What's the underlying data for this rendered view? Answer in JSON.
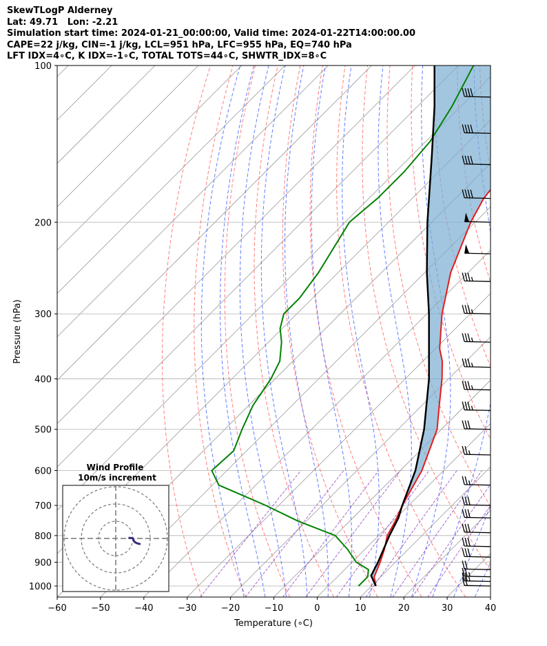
{
  "header": {
    "line1": "SkewTLogP Alderney",
    "line2": "Lat: 49.71   Lon: -2.21",
    "line3": "Simulation start time: 2024-01-21_00:00:00, Valid time: 2024-01-22T14:00:00.00",
    "line4": "CAPE=22 j/kg, CIN=-1 j/kg, LCL=951 hPa, LFC=955 hPa, EQ=740 hPa",
    "line5": "LFT IDX=4∘C, K IDX=-1∘C, TOTAL TOTS=44∘C, SHWTR_IDX=8∘C"
  },
  "colors": {
    "temperature": "#e31a1c",
    "dewpoint": "#008000",
    "parcel": "#000000",
    "cape_fill": "#7aaed2",
    "dry_adiabat": "#ff5050",
    "moist_adiabat": "#3050ff",
    "mixing_ratio": "#9040c0",
    "isotherm": "#999999",
    "grid": "#b0b0b0",
    "hodograph": "#3a2a7a"
  },
  "chart_data": {
    "type": "skewt",
    "xlabel": "Temperature (∘C)",
    "ylabel": "Pressure (hPa)",
    "xlim": [
      -60,
      40
    ],
    "ylim": [
      1050,
      100
    ],
    "x_ticks": [
      "−60",
      "−50",
      "−40",
      "−30",
      "−20",
      "−10",
      "0",
      "10",
      "20",
      "30",
      "40"
    ],
    "x_tick_values": [
      -60,
      -50,
      -40,
      -30,
      -20,
      -10,
      0,
      10,
      20,
      30,
      40
    ],
    "y_ticks": [
      "1000",
      "900",
      "800",
      "700",
      "600",
      "500",
      "400",
      "300",
      "200",
      "100"
    ],
    "y_tick_values": [
      1000,
      900,
      800,
      700,
      600,
      500,
      400,
      300,
      200,
      100
    ],
    "grid": true,
    "temperature": [
      [
        1000,
        11.0
      ],
      [
        960,
        8.5
      ],
      [
        900,
        6.5
      ],
      [
        850,
        4.5
      ],
      [
        800,
        2.0
      ],
      [
        750,
        0.5
      ],
      [
        700,
        -1.5
      ],
      [
        600,
        -5.0
      ],
      [
        500,
        -11.0
      ],
      [
        450,
        -16.0
      ],
      [
        400,
        -21.5
      ],
      [
        370,
        -25.5
      ],
      [
        350,
        -29.0
      ],
      [
        300,
        -36.5
      ],
      [
        250,
        -44.0
      ],
      [
        200,
        -51.0
      ],
      [
        180,
        -53.5
      ],
      [
        150,
        -55.5
      ],
      [
        120,
        -58.5
      ],
      [
        110,
        -59.5
      ],
      [
        100,
        -60.5
      ]
    ],
    "dewpoint": [
      [
        1000,
        7.0
      ],
      [
        960,
        7.0
      ],
      [
        930,
        5.5
      ],
      [
        900,
        1.0
      ],
      [
        850,
        -4.0
      ],
      [
        800,
        -10.0
      ],
      [
        750,
        -22.0
      ],
      [
        700,
        -33.0
      ],
      [
        640,
        -48.5
      ],
      [
        600,
        -53.5
      ],
      [
        550,
        -53.0
      ],
      [
        500,
        -56.0
      ],
      [
        450,
        -59.0
      ],
      [
        400,
        -61.0
      ],
      [
        370,
        -63.0
      ],
      [
        340,
        -67.0
      ],
      [
        320,
        -70.5
      ],
      [
        300,
        -73.0
      ],
      [
        280,
        -73.0
      ],
      [
        250,
        -74.5
      ],
      [
        200,
        -79.0
      ],
      [
        180,
        -78.0
      ],
      [
        160,
        -78.0
      ],
      [
        140,
        -79.0
      ],
      [
        120,
        -82.0
      ],
      [
        100,
        -86.5
      ]
    ],
    "parcel": [
      [
        1000,
        11.0
      ],
      [
        955,
        7.5
      ],
      [
        900,
        6.0
      ],
      [
        800,
        2.5
      ],
      [
        740,
        0.5
      ],
      [
        700,
        -1.5
      ],
      [
        600,
        -6.5
      ],
      [
        500,
        -14.0
      ],
      [
        400,
        -24.5
      ],
      [
        300,
        -39.5
      ],
      [
        250,
        -49.5
      ],
      [
        200,
        -61.0
      ],
      [
        150,
        -75.0
      ],
      [
        120,
        -86.0
      ],
      [
        100,
        -95.5
      ]
    ],
    "wind_barbs": [
      {
        "p": 1000,
        "kt": 20
      },
      {
        "p": 980,
        "kt": 25
      },
      {
        "p": 960,
        "kt": 25
      },
      {
        "p": 930,
        "kt": 20
      },
      {
        "p": 880,
        "kt": 30
      },
      {
        "p": 840,
        "kt": 30
      },
      {
        "p": 790,
        "kt": 30
      },
      {
        "p": 740,
        "kt": 30
      },
      {
        "p": 700,
        "kt": 30
      },
      {
        "p": 640,
        "kt": 25
      },
      {
        "p": 560,
        "kt": 25
      },
      {
        "p": 500,
        "kt": 30
      },
      {
        "p": 460,
        "kt": 35
      },
      {
        "p": 420,
        "kt": 35
      },
      {
        "p": 380,
        "kt": 35
      },
      {
        "p": 340,
        "kt": 35
      },
      {
        "p": 300,
        "kt": 35
      },
      {
        "p": 260,
        "kt": 35
      },
      {
        "p": 230,
        "kt": 50
      },
      {
        "p": 200,
        "kt": 50
      },
      {
        "p": 180,
        "kt": 40
      },
      {
        "p": 155,
        "kt": 40
      },
      {
        "p": 135,
        "kt": 40
      },
      {
        "p": 115,
        "kt": 40
      }
    ],
    "hodograph": {
      "title": "Wind Profile",
      "subtitle": "10m/s increment",
      "points": [
        [
          -7,
          0.5
        ],
        [
          -5,
          0.5
        ],
        [
          -3,
          0.3
        ],
        [
          -2,
          -0.5
        ],
        [
          -1.5,
          -2.5
        ],
        [
          0,
          -4
        ],
        [
          2,
          -5
        ],
        [
          4,
          -5.5
        ],
        [
          5.5,
          -5.8
        ]
      ]
    }
  }
}
